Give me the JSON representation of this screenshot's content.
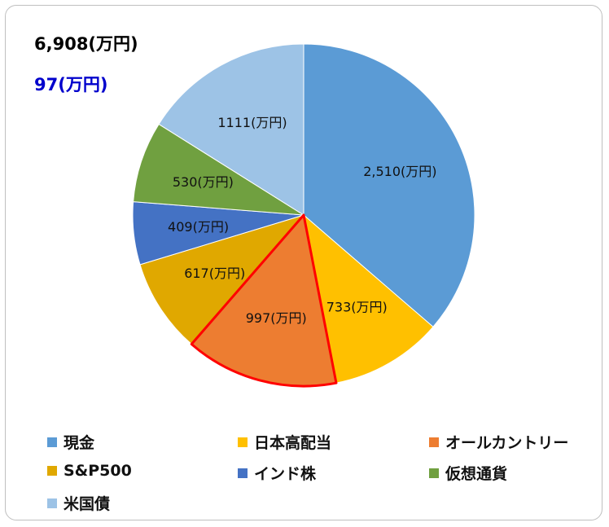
{
  "summary": {
    "total": "6,908(万円)",
    "difference": "97(万円)",
    "difference_color": "#0000cc"
  },
  "chart_data": {
    "type": "pie",
    "unit": "(万円)",
    "highlight_color": "#ff0000",
    "highlighted": [
      "オールカントリー"
    ],
    "legend_position": "bottom",
    "slices": [
      {
        "name": "現金",
        "value": 2510,
        "label": "2,510(万円)",
        "color": "#5b9bd5"
      },
      {
        "name": "日本高配当",
        "value": 733,
        "label": "733(万円)",
        "color": "#ffc000"
      },
      {
        "name": "オールカントリー",
        "value": 997,
        "label": "997(万円)",
        "color": "#ed7d31"
      },
      {
        "name": "S&P500",
        "value": 617,
        "label": "617(万円)",
        "color": "#e0a800"
      },
      {
        "name": "インド株",
        "value": 409,
        "label": "409(万円)",
        "color": "#4472c4"
      },
      {
        "name": "仮想通貨",
        "value": 530,
        "label": "530(万円)",
        "color": "#70a040"
      },
      {
        "name": "米国債",
        "value": 1111,
        "label": "1111(万円)",
        "color": "#9dc3e6"
      }
    ]
  }
}
